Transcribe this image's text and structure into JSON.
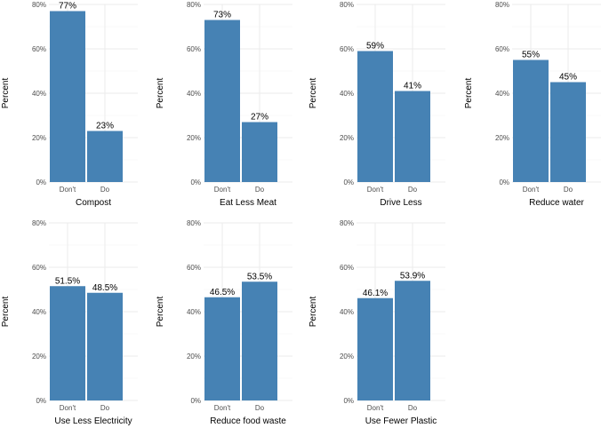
{
  "bar_color": "#4682b4",
  "chart_data": [
    {
      "type": "bar",
      "title": "",
      "xlabel": "Compost",
      "ylabel": "Percent",
      "categories": [
        "Don't",
        "Do"
      ],
      "values": [
        77,
        23
      ],
      "labels": [
        "77%",
        "23%"
      ],
      "ylim": [
        0,
        80
      ],
      "yticks": [
        "0%",
        "20%",
        "40%",
        "60%",
        "80%"
      ]
    },
    {
      "type": "bar",
      "title": "",
      "xlabel": "Eat Less Meat",
      "ylabel": "Percent",
      "categories": [
        "Don't",
        "Do"
      ],
      "values": [
        73,
        27
      ],
      "labels": [
        "73%",
        "27%"
      ],
      "ylim": [
        0,
        80
      ],
      "yticks": [
        "0%",
        "20%",
        "40%",
        "60%",
        "80%"
      ]
    },
    {
      "type": "bar",
      "title": "",
      "xlabel": "Drive Less",
      "ylabel": "Percent",
      "categories": [
        "Don't",
        "Do"
      ],
      "values": [
        59,
        41
      ],
      "labels": [
        "59%",
        "41%"
      ],
      "ylim": [
        0,
        80
      ],
      "yticks": [
        "0%",
        "20%",
        "40%",
        "60%",
        "80%"
      ]
    },
    {
      "type": "bar",
      "title": "",
      "xlabel": "Reduce water",
      "ylabel": "Percent",
      "categories": [
        "Don't",
        "Do"
      ],
      "values": [
        55,
        45
      ],
      "labels": [
        "55%",
        "45%"
      ],
      "ylim": [
        0,
        80
      ],
      "yticks": [
        "0%",
        "20%",
        "40%",
        "60%",
        "80%"
      ]
    },
    {
      "type": "bar",
      "title": "",
      "xlabel": "Use Less Electricity",
      "ylabel": "Percent",
      "categories": [
        "Don't",
        "Do"
      ],
      "values": [
        51.5,
        48.5
      ],
      "labels": [
        "51.5%",
        "48.5%"
      ],
      "ylim": [
        0,
        80
      ],
      "yticks": [
        "0%",
        "20%",
        "40%",
        "60%",
        "80%"
      ]
    },
    {
      "type": "bar",
      "title": "",
      "xlabel": "Reduce food waste",
      "ylabel": "Percent",
      "categories": [
        "Don't",
        "Do"
      ],
      "values": [
        46.5,
        53.5
      ],
      "labels": [
        "46.5%",
        "53.5%"
      ],
      "ylim": [
        0,
        80
      ],
      "yticks": [
        "0%",
        "20%",
        "40%",
        "60%",
        "80%"
      ]
    },
    {
      "type": "bar",
      "title": "",
      "xlabel": "Use Fewer Plastic",
      "ylabel": "Percent",
      "categories": [
        "Don't",
        "Do"
      ],
      "values": [
        46.1,
        53.9
      ],
      "labels": [
        "46.1%",
        "53.9%"
      ],
      "ylim": [
        0,
        80
      ],
      "yticks": [
        "0%",
        "20%",
        "40%",
        "60%",
        "80%"
      ]
    }
  ]
}
